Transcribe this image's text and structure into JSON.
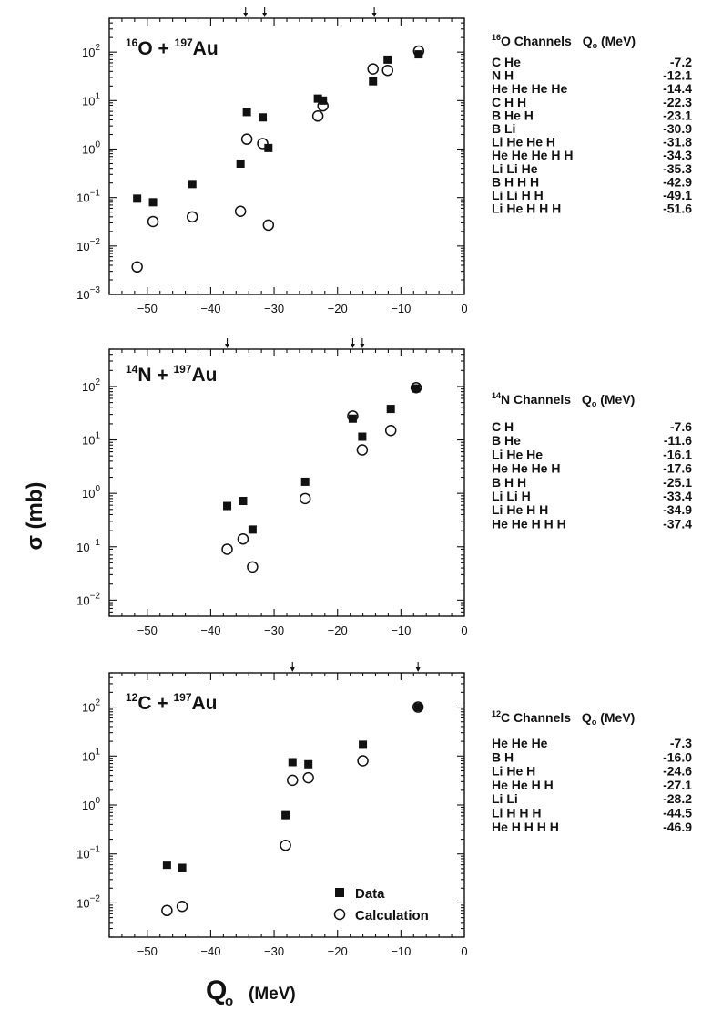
{
  "figure": {
    "ylabel": "σ (mb)",
    "xlabel_main": "Q",
    "xlabel_sub": "o",
    "xlabel_unit": "(MeV)"
  },
  "legend": {
    "data_label": "Data",
    "calc_label": "Calculation"
  },
  "chart_data": [
    {
      "type": "scatter",
      "id": "O16",
      "title": {
        "a1": "16",
        "e1": "O",
        "a2": "197",
        "e2": "Au"
      },
      "xlim": [
        -56,
        0
      ],
      "ylim": [
        0.001,
        500
      ],
      "yscale": "log",
      "x_ticks": [
        -50,
        -40,
        -30,
        -20,
        -10,
        0
      ],
      "y_ticks": [
        {
          "m": "10",
          "e": "-3",
          "v": 0.001
        },
        {
          "m": "10",
          "e": "-2",
          "v": 0.01
        },
        {
          "m": "10",
          "e": "-1",
          "v": 0.1
        },
        {
          "m": "10",
          "e": "0",
          "v": 1
        },
        {
          "m": "10",
          "e": "1",
          "v": 10
        },
        {
          "m": "10",
          "e": "2",
          "v": 100
        }
      ],
      "arrows_x": [
        -34.5,
        -31.5,
        -14.2
      ],
      "series": [
        {
          "name": "Data",
          "marker": "filled-square",
          "points": [
            [
              -51.6,
              0.095
            ],
            [
              -49.1,
              0.08
            ],
            [
              -42.9,
              0.19
            ],
            [
              -35.3,
              0.5
            ],
            [
              -34.3,
              5.8
            ],
            [
              -31.8,
              4.5
            ],
            [
              -30.9,
              1.05
            ],
            [
              -23.1,
              11
            ],
            [
              -22.3,
              10
            ],
            [
              -14.4,
              25
            ],
            [
              -12.1,
              70
            ],
            [
              -7.2,
              90
            ]
          ]
        },
        {
          "name": "Calculation",
          "marker": "open-circle",
          "points": [
            [
              -51.6,
              0.0037
            ],
            [
              -49.1,
              0.032
            ],
            [
              -42.9,
              0.04
            ],
            [
              -35.3,
              0.052
            ],
            [
              -34.3,
              1.6
            ],
            [
              -31.8,
              1.3
            ],
            [
              -30.9,
              0.027
            ],
            [
              -23.1,
              4.8
            ],
            [
              -22.3,
              7.8
            ],
            [
              -14.4,
              45
            ],
            [
              -12.1,
              42
            ],
            [
              -7.2,
              105
            ]
          ]
        }
      ],
      "channels_header": {
        "a": "16",
        "rest": "O Channels",
        "q": "Q",
        "qsub": "o",
        "unit": "(MeV)"
      },
      "channels": [
        {
          "name": "C He",
          "q": "-7.2"
        },
        {
          "name": "N H",
          "q": "-12.1"
        },
        {
          "name": "He He He He",
          "q": "-14.4"
        },
        {
          "name": "C H H",
          "q": "-22.3"
        },
        {
          "name": "B He H",
          "q": "-23.1"
        },
        {
          "name": "B Li",
          "q": "-30.9"
        },
        {
          "name": "Li He He H",
          "q": "-31.8"
        },
        {
          "name": "He He He H H",
          "q": "-34.3"
        },
        {
          "name": "Li Li He",
          "q": "-35.3"
        },
        {
          "name": "B H H H",
          "q": "-42.9"
        },
        {
          "name": "Li Li H H",
          "q": "-49.1"
        },
        {
          "name": "Li He H H H",
          "q": "-51.6"
        }
      ]
    },
    {
      "type": "scatter",
      "id": "N14",
      "title": {
        "a1": "14",
        "e1": "N",
        "a2": "197",
        "e2": "Au"
      },
      "xlim": [
        -56,
        0
      ],
      "ylim": [
        0.005,
        500
      ],
      "yscale": "log",
      "x_ticks": [
        -50,
        -40,
        -30,
        -20,
        -10,
        0
      ],
      "y_ticks": [
        {
          "m": "10",
          "e": "-2",
          "v": 0.01
        },
        {
          "m": "10",
          "e": "-1",
          "v": 0.1
        },
        {
          "m": "10",
          "e": "0",
          "v": 1
        },
        {
          "m": "10",
          "e": "1",
          "v": 10
        },
        {
          "m": "10",
          "e": "2",
          "v": 100
        }
      ],
      "arrows_x": [
        -37.4,
        -17.6,
        -16.1
      ],
      "series": [
        {
          "name": "Data",
          "marker": "filled-square",
          "points": [
            [
              -37.4,
              0.58
            ],
            [
              -34.9,
              0.72
            ],
            [
              -33.4,
              0.21
            ],
            [
              -25.1,
              1.65
            ],
            [
              -17.6,
              25
            ],
            [
              -16.1,
              11.5
            ],
            [
              -11.6,
              38
            ],
            [
              -7.6,
              92
            ]
          ]
        },
        {
          "name": "Calculation",
          "marker": "open-circle",
          "points": [
            [
              -37.4,
              0.09
            ],
            [
              -34.9,
              0.14
            ],
            [
              -33.4,
              0.042
            ],
            [
              -25.1,
              0.8
            ],
            [
              -17.6,
              28
            ],
            [
              -16.1,
              6.5
            ],
            [
              -11.6,
              15
            ],
            [
              -7.6,
              95
            ]
          ]
        }
      ],
      "channels_header": {
        "a": "14",
        "rest": "N Channels",
        "q": "Q",
        "qsub": "o",
        "unit": "(MeV)"
      },
      "channels": [
        {
          "name": "C H",
          "q": "-7.6"
        },
        {
          "name": "B He",
          "q": "-11.6"
        },
        {
          "name": "Li He He",
          "q": "-16.1"
        },
        {
          "name": "He He He H",
          "q": "-17.6"
        },
        {
          "name": "B H H",
          "q": "-25.1"
        },
        {
          "name": "Li Li H",
          "q": "-33.4"
        },
        {
          "name": "Li He H H",
          "q": "-34.9"
        },
        {
          "name": "He He H H H",
          "q": "-37.4"
        }
      ]
    },
    {
      "type": "scatter",
      "id": "C12",
      "title": {
        "a1": "12",
        "e1": "C",
        "a2": "197",
        "e2": "Au"
      },
      "xlim": [
        -56,
        0
      ],
      "ylim": [
        0.002,
        500
      ],
      "yscale": "log",
      "x_ticks": [
        -50,
        -40,
        -30,
        -20,
        -10,
        0
      ],
      "y_ticks": [
        {
          "m": "10",
          "e": "-2",
          "v": 0.01
        },
        {
          "m": "10",
          "e": "-1",
          "v": 0.1
        },
        {
          "m": "10",
          "e": "0",
          "v": 1
        },
        {
          "m": "10",
          "e": "1",
          "v": 10
        },
        {
          "m": "10",
          "e": "2",
          "v": 100
        }
      ],
      "arrows_x": [
        -27.1,
        -7.3
      ],
      "series": [
        {
          "name": "Data",
          "marker": "filled-square",
          "points": [
            [
              -46.9,
              0.06
            ],
            [
              -44.5,
              0.052
            ],
            [
              -28.2,
              0.62
            ],
            [
              -27.1,
              7.5
            ],
            [
              -24.6,
              6.8
            ],
            [
              -16.0,
              17
            ],
            [
              -7.3,
              100
            ]
          ]
        },
        {
          "name": "Calculation",
          "marker": "open-circle",
          "points": [
            [
              -46.9,
              0.007
            ],
            [
              -44.5,
              0.0085
            ],
            [
              -28.2,
              0.15
            ],
            [
              -27.1,
              3.2
            ],
            [
              -24.6,
              3.6
            ],
            [
              -16.0,
              8
            ],
            [
              -7.3,
              100
            ]
          ]
        }
      ],
      "channels_header": {
        "a": "12",
        "rest": "C Channels",
        "q": "Q",
        "qsub": "o",
        "unit": "(MeV)"
      },
      "channels": [
        {
          "name": "He He He",
          "q": "-7.3"
        },
        {
          "name": "B H",
          "q": "-16.0"
        },
        {
          "name": "Li He H",
          "q": "-24.6"
        },
        {
          "name": "He He H H",
          "q": "-27.1"
        },
        {
          "name": "Li Li",
          "q": "-28.2"
        },
        {
          "name": "Li H H H",
          "q": "-44.5"
        },
        {
          "name": "He H H H H",
          "q": "-46.9"
        }
      ]
    }
  ]
}
